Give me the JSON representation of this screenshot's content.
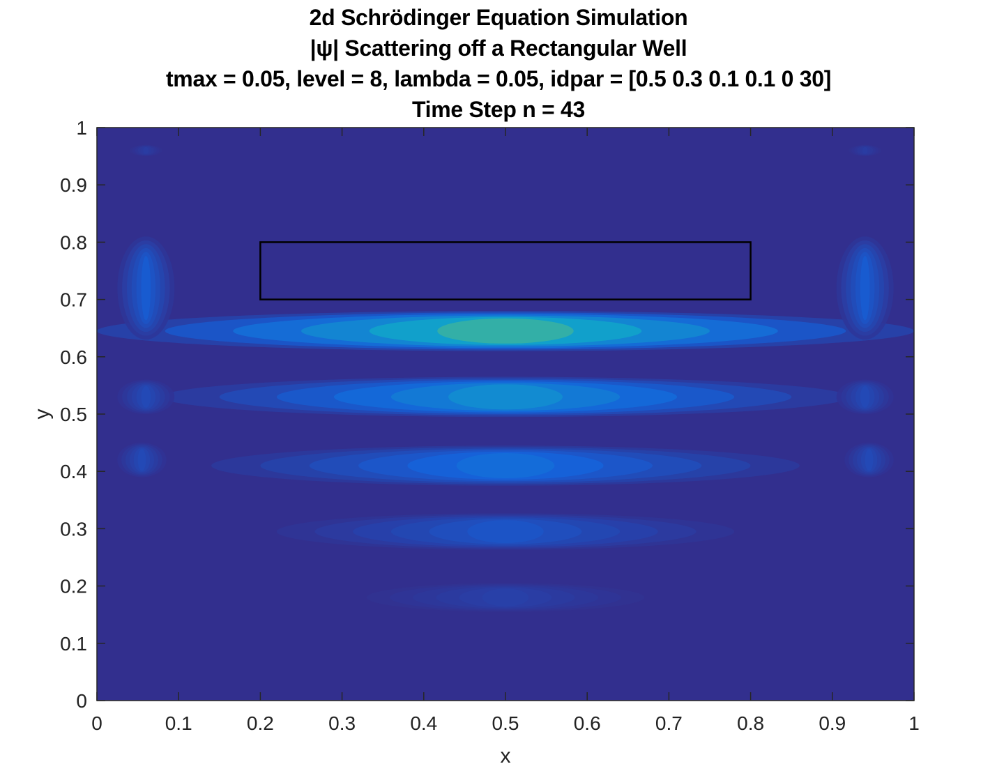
{
  "chart_data": {
    "type": "heatmap",
    "title": [
      "2d Schrödinger Equation Simulation",
      "|ψ| Scattering off a Rectangular Well",
      "tmax = 0.05, level = 8, lambda = 0.05, idpar = [0.5 0.3 0.1 0.1 0 30]",
      "Time Step n = 43"
    ],
    "xlabel": "x",
    "ylabel": "y",
    "xlim": [
      0,
      1
    ],
    "ylim": [
      0,
      1
    ],
    "xticks": [
      0,
      0.1,
      0.2,
      0.3,
      0.4,
      0.5,
      0.6,
      0.7,
      0.8,
      0.9,
      1
    ],
    "yticks": [
      0,
      0.1,
      0.2,
      0.3,
      0.4,
      0.5,
      0.6,
      0.7,
      0.8,
      0.9,
      1
    ],
    "xtick_labels": [
      "0",
      "0.1",
      "0.2",
      "0.3",
      "0.4",
      "0.5",
      "0.6",
      "0.7",
      "0.8",
      "0.9",
      "1"
    ],
    "ytick_labels": [
      "0",
      "0.1",
      "0.2",
      "0.3",
      "0.4",
      "0.5",
      "0.6",
      "0.7",
      "0.8",
      "0.9",
      "1"
    ],
    "colormap": "parula",
    "grid": false,
    "well_rectangle": {
      "x": [
        0.2,
        0.8
      ],
      "y": [
        0.7,
        0.8
      ]
    },
    "intensity_bands": [
      {
        "y": 0.645,
        "x_center": 0.5,
        "x_halfwidth": 0.5,
        "y_halfwidth": 0.035,
        "peak": 0.55
      },
      {
        "y": 0.53,
        "x_center": 0.5,
        "x_halfwidth": 0.42,
        "y_halfwidth": 0.035,
        "peak": 0.38
      },
      {
        "y": 0.41,
        "x_center": 0.5,
        "x_halfwidth": 0.36,
        "y_halfwidth": 0.035,
        "peak": 0.27
      },
      {
        "y": 0.295,
        "x_center": 0.5,
        "x_halfwidth": 0.28,
        "y_halfwidth": 0.032,
        "peak": 0.17
      },
      {
        "y": 0.18,
        "x_center": 0.5,
        "x_halfwidth": 0.17,
        "y_halfwidth": 0.025,
        "peak": 0.08
      }
    ],
    "side_lobes": [
      {
        "x": 0.06,
        "y": 0.72,
        "x_halfwidth": 0.035,
        "y_halfwidth": 0.09,
        "peak": 0.2
      },
      {
        "x": 0.94,
        "y": 0.72,
        "x_halfwidth": 0.035,
        "y_halfwidth": 0.09,
        "peak": 0.2
      },
      {
        "x": 0.055,
        "y": 0.42,
        "x_halfwidth": 0.03,
        "y_halfwidth": 0.03,
        "peak": 0.12
      },
      {
        "x": 0.945,
        "y": 0.42,
        "x_halfwidth": 0.03,
        "y_halfwidth": 0.03,
        "peak": 0.12
      },
      {
        "x": 0.06,
        "y": 0.53,
        "x_halfwidth": 0.035,
        "y_halfwidth": 0.03,
        "peak": 0.12
      },
      {
        "x": 0.94,
        "y": 0.53,
        "x_halfwidth": 0.035,
        "y_halfwidth": 0.03,
        "peak": 0.12
      },
      {
        "x": 0.06,
        "y": 0.96,
        "x_halfwidth": 0.02,
        "y_halfwidth": 0.01,
        "peak": 0.06
      },
      {
        "x": 0.94,
        "y": 0.96,
        "x_halfwidth": 0.02,
        "y_halfwidth": 0.01,
        "peak": 0.06
      }
    ]
  }
}
